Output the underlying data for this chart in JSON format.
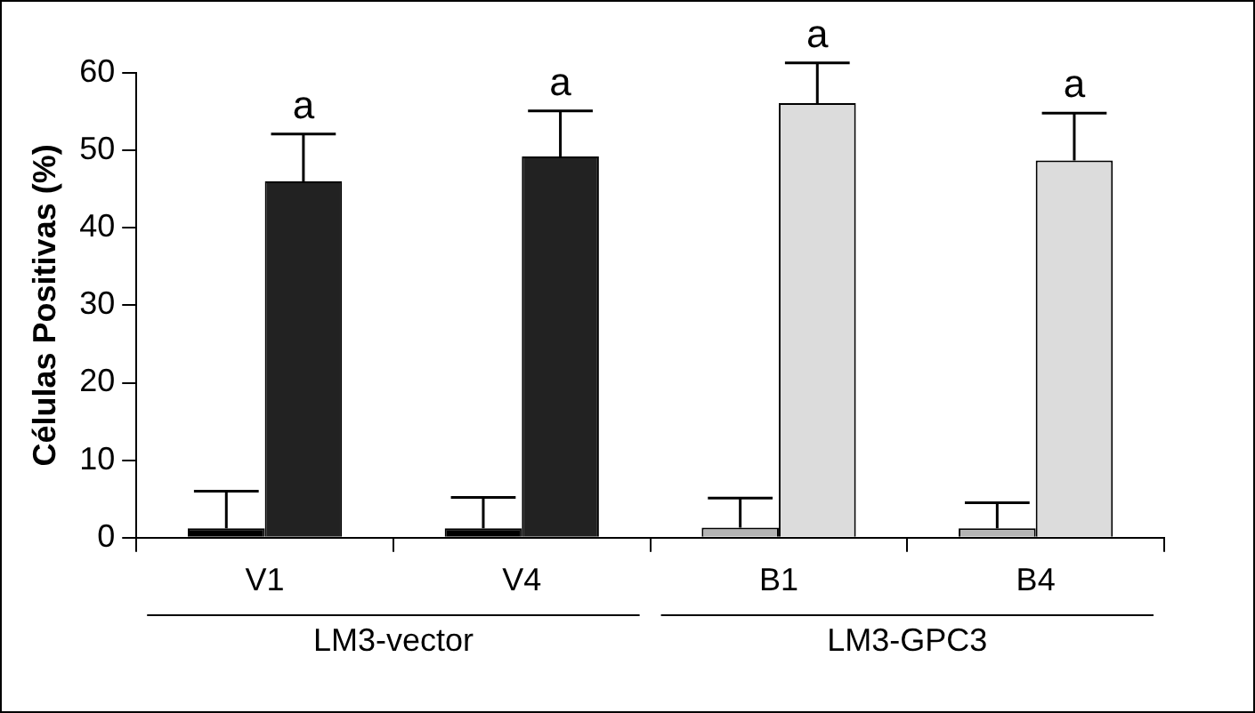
{
  "chart_data": {
    "type": "bar",
    "ylabel": "Células Positivas (%)",
    "categories": [
      "V1",
      "V4",
      "B1",
      "B4"
    ],
    "series": [
      {
        "colors": [
          "#000000",
          "#000000",
          "#b4b4b4",
          "#b4b4b4"
        ],
        "values": [
          1.2,
          1.2,
          1.3,
          1.2
        ],
        "errors": [
          [
            1.2,
            6.0
          ],
          [
            1.2,
            5.2
          ],
          [
            1.3,
            5.1
          ],
          [
            1.2,
            4.5
          ]
        ]
      },
      {
        "colors": [
          "#222222",
          "#222222",
          "#dcdcdc",
          "#dcdcdc"
        ],
        "values": [
          46.0,
          49.2,
          56.1,
          48.7
        ],
        "errors": [
          [
            46.0,
            52.1
          ],
          [
            49.2,
            55.1
          ],
          [
            56.1,
            61.3
          ],
          [
            48.7,
            54.8
          ]
        ]
      }
    ],
    "ylim": [
      0,
      60
    ],
    "yticks": [
      0,
      10,
      20,
      30,
      40,
      50,
      60
    ],
    "grid": false,
    "legend": false,
    "annotations": [
      "a",
      "a",
      "a",
      "a",
      "LM3-vector",
      "LM3-GPC3"
    ]
  }
}
